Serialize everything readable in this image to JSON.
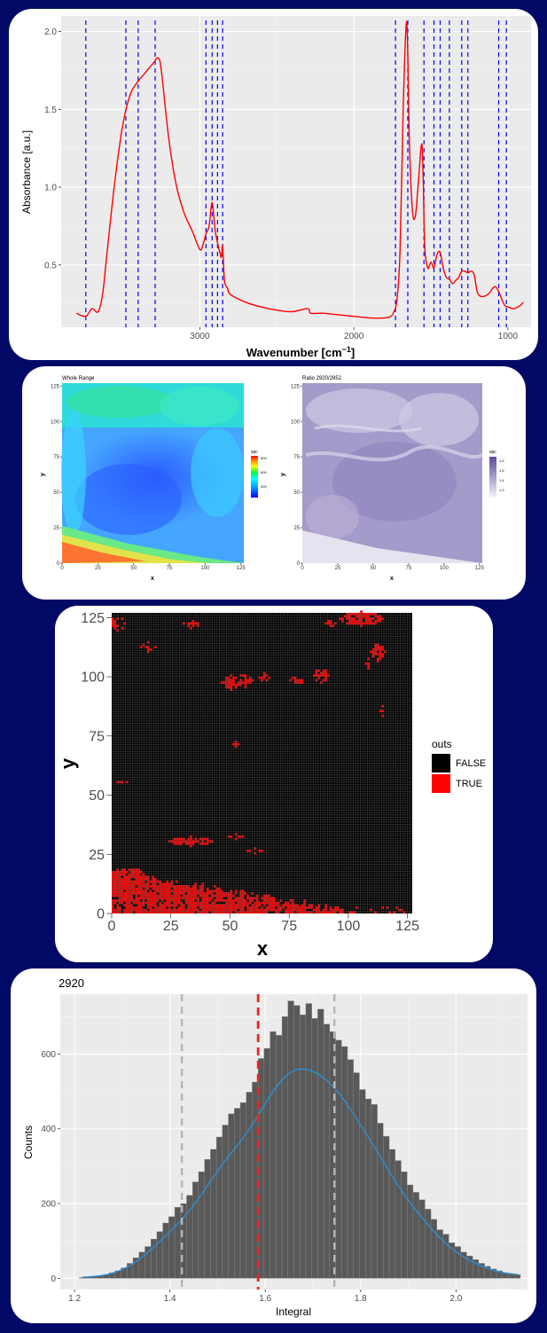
{
  "spectrum": {
    "ylabel": "Absorbance [a.u.]",
    "xlabel_main": "Wavenumber [cm",
    "xlabel_sup": "−1",
    "xlabel_end": "]",
    "yticks": [
      "0.5",
      "1.0",
      "1.5",
      "2.0"
    ],
    "xticks": [
      "3000",
      "2000",
      "1000"
    ]
  },
  "maps": {
    "left_title": "Whole Range",
    "right_title": "Ratio 2920/2852",
    "xlabel": "x",
    "ylabel": "y",
    "ticks_x": [
      "0",
      "25",
      "50",
      "75",
      "100",
      "125"
    ],
    "ticks_y": [
      "0",
      "25",
      "50",
      "75",
      "100",
      "125"
    ],
    "left_legend_title": "spc",
    "left_legend": [
      "800",
      "600",
      "400"
    ],
    "right_legend_title": "spc",
    "right_legend": [
      "1.6",
      "1.5",
      "1.4",
      "1.3"
    ]
  },
  "outliers": {
    "xlabel": "x",
    "ylabel": "y",
    "ticks_x": [
      "0",
      "25",
      "50",
      "75",
      "100",
      "125"
    ],
    "ticks_y": [
      "0",
      "25",
      "50",
      "75",
      "100",
      "125"
    ],
    "legend_title": "outs",
    "legend_false": "FALSE",
    "legend_true": "TRUE"
  },
  "histogram": {
    "title": "2920",
    "xlabel": "Integral",
    "ylabel": "Counts",
    "xticks": [
      "1.2",
      "1.4",
      "1.6",
      "1.8",
      "2.0"
    ],
    "yticks": [
      "0",
      "200",
      "400",
      "600"
    ]
  },
  "chart_data": [
    {
      "type": "line",
      "xlabel": "Wavenumber [cm−1]",
      "ylabel": "Absorbance [a.u.]",
      "xlim": [
        3900,
        850
      ],
      "ylim": [
        0.1,
        2.1
      ],
      "x_reversed": true,
      "series": [
        {
          "color": "#ff0000",
          "x": [
            3800,
            3740,
            3700,
            3660,
            3630,
            3600,
            3550,
            3500,
            3450,
            3400,
            3350,
            3300,
            3270,
            3250,
            3200,
            3150,
            3100,
            3050,
            3000,
            2980,
            2960,
            2940,
            2920,
            2900,
            2880,
            2870,
            2860,
            2852,
            2840,
            2820,
            2800,
            2700,
            2600,
            2500,
            2400,
            2300,
            2280,
            2200,
            2100,
            2000,
            1900,
            1800,
            1760,
            1740,
            1720,
            1700,
            1680,
            1660,
            1650,
            1640,
            1620,
            1600,
            1580,
            1560,
            1550,
            1540,
            1520,
            1500,
            1480,
            1460,
            1440,
            1420,
            1400,
            1380,
            1360,
            1340,
            1320,
            1300,
            1280,
            1260,
            1240,
            1220,
            1200,
            1180,
            1150,
            1120,
            1100,
            1080,
            1060,
            1040,
            1020,
            1000,
            960,
            920,
            900
          ],
          "y": [
            0.19,
            0.17,
            0.22,
            0.2,
            0.32,
            0.6,
            1.05,
            1.4,
            1.6,
            1.68,
            1.74,
            1.8,
            1.83,
            1.75,
            1.3,
            1.0,
            0.83,
            0.72,
            0.6,
            0.63,
            0.7,
            0.75,
            0.9,
            0.72,
            0.62,
            0.58,
            0.55,
            0.62,
            0.4,
            0.35,
            0.31,
            0.26,
            0.23,
            0.21,
            0.2,
            0.22,
            0.19,
            0.19,
            0.18,
            0.17,
            0.16,
            0.16,
            0.17,
            0.2,
            0.28,
            0.6,
            1.5,
            2.05,
            1.85,
            1.3,
            0.85,
            0.82,
            1.05,
            1.28,
            1.05,
            0.62,
            0.48,
            0.52,
            0.48,
            0.57,
            0.58,
            0.48,
            0.42,
            0.41,
            0.38,
            0.4,
            0.42,
            0.46,
            0.46,
            0.45,
            0.46,
            0.44,
            0.33,
            0.3,
            0.3,
            0.32,
            0.35,
            0.36,
            0.33,
            0.28,
            0.24,
            0.23,
            0.22,
            0.24,
            0.26
          ]
        }
      ],
      "vlines": [
        3740,
        3480,
        3400,
        3290,
        2960,
        2920,
        2885,
        2852,
        1730,
        1650,
        1545,
        1480,
        1440,
        1380,
        1300,
        1260,
        1060,
        1010
      ]
    },
    {
      "type": "heatmap",
      "title": "Whole Range",
      "xlabel": "x",
      "ylabel": "y",
      "xlim": [
        0,
        127
      ],
      "ylim": [
        0,
        127
      ],
      "legend_title": "spc",
      "legend_ticks": [
        800,
        600,
        400
      ]
    },
    {
      "type": "heatmap",
      "title": "Ratio 2920/2852",
      "xlabel": "x",
      "ylabel": "y",
      "xlim": [
        0,
        127
      ],
      "ylim": [
        0,
        127
      ],
      "legend_title": "spc",
      "legend_ticks": [
        1.6,
        1.5,
        1.4,
        1.3
      ]
    },
    {
      "type": "heatmap",
      "xlabel": "x",
      "ylabel": "y",
      "xlim": [
        0,
        127
      ],
      "ylim": [
        0,
        127
      ],
      "legend_title": "outs",
      "categories": [
        "FALSE",
        "TRUE"
      ],
      "colors": [
        "#000000",
        "#ff0000"
      ]
    },
    {
      "type": "bar",
      "title": "2920",
      "xlabel": "Integral",
      "ylabel": "Counts",
      "xlim": [
        1.17,
        2.15
      ],
      "ylim": [
        -30,
        760
      ],
      "bin_start": 1.21,
      "bin_width": 0.0125,
      "values": [
        2,
        3,
        5,
        7,
        10,
        15,
        20,
        28,
        40,
        55,
        70,
        85,
        105,
        125,
        148,
        165,
        190,
        200,
        222,
        258,
        285,
        318,
        345,
        378,
        410,
        440,
        455,
        470,
        498,
        525,
        588,
        615,
        660,
        650,
        700,
        742,
        730,
        705,
        735,
        695,
        720,
        680,
        660,
        637,
        620,
        585,
        550,
        505,
        480,
        465,
        415,
        380,
        345,
        315,
        285,
        250,
        230,
        210,
        185,
        158,
        130,
        118,
        95,
        85,
        70,
        60,
        50,
        40,
        32,
        25,
        20,
        15,
        12,
        10
      ]
    }
  ],
  "histogram_density_peak": 560,
  "histogram_lines": {
    "red": 1.585,
    "grey": [
      1.425,
      1.745
    ]
  }
}
